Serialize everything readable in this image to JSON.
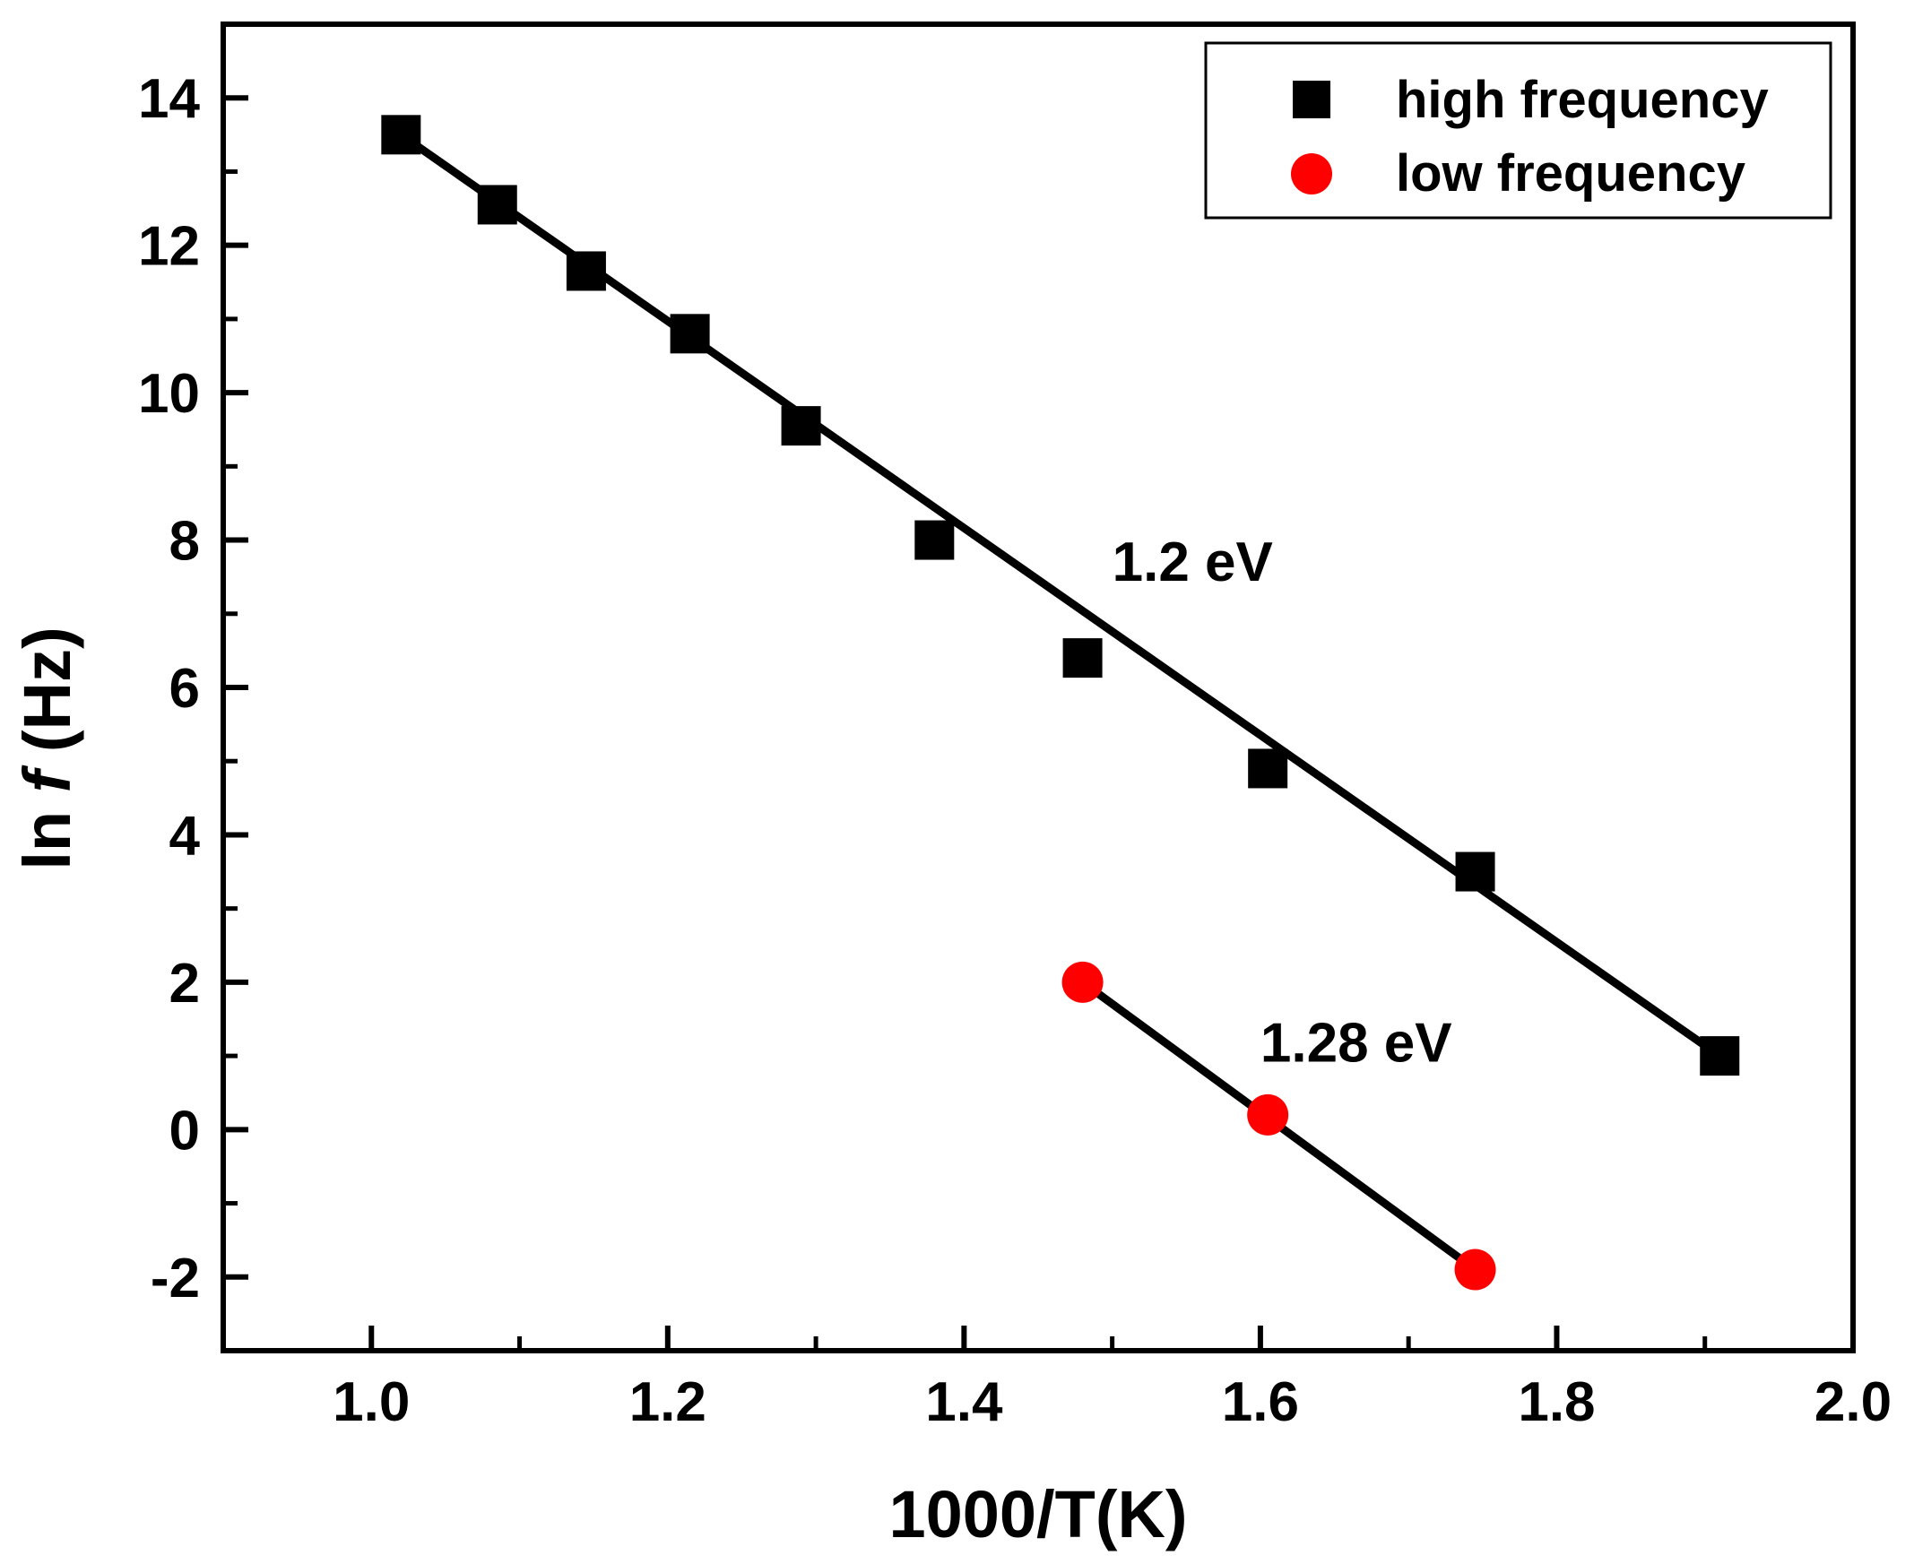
{
  "chart_data": {
    "type": "scatter",
    "title": "",
    "xlabel": "1000/T(K)",
    "ylabel_prefix": "ln ",
    "ylabel_var": "f",
    "ylabel_suffix": " (Hz)",
    "xlim": [
      0.9,
      2.0
    ],
    "ylim": [
      -3,
      15
    ],
    "x_ticks": [
      1.0,
      1.2,
      1.4,
      1.6,
      1.8,
      2.0
    ],
    "x_tick_labels": [
      "1.0",
      "1.2",
      "1.4",
      "1.6",
      "1.8",
      "2.0"
    ],
    "x_minor_ticks": [
      1.1,
      1.3,
      1.5,
      1.7,
      1.9
    ],
    "y_ticks": [
      -2,
      0,
      2,
      4,
      6,
      8,
      10,
      12,
      14
    ],
    "y_tick_labels": [
      "-2",
      "0",
      "2",
      "4",
      "6",
      "8",
      "10",
      "12",
      "14"
    ],
    "y_minor_ticks": [
      -1,
      1,
      3,
      5,
      7,
      9,
      11,
      13
    ],
    "grid": false,
    "legend_position": "top-right",
    "series": [
      {
        "name": "high frequency",
        "marker": "square",
        "color": "#000000",
        "x": [
          1.02,
          1.085,
          1.145,
          1.215,
          1.29,
          1.38,
          1.48,
          1.605,
          1.745,
          1.91
        ],
        "y": [
          13.5,
          12.55,
          11.65,
          10.8,
          9.55,
          8.0,
          6.4,
          4.9,
          3.5,
          1.0
        ],
        "fit": {
          "x": [
            1.02,
            1.91
          ],
          "y": [
            13.5,
            1.0
          ],
          "label": "1.2 eV"
        }
      },
      {
        "name": "low frequency",
        "marker": "circle",
        "color": "#ff0000",
        "x": [
          1.48,
          1.605,
          1.745
        ],
        "y": [
          2.0,
          0.2,
          -1.9
        ],
        "fit": {
          "x": [
            1.48,
            1.745
          ],
          "y": [
            2.0,
            -1.9
          ],
          "label": "1.28 eV"
        }
      }
    ],
    "annotations": [
      {
        "text": "1.2 eV",
        "x": 1.5,
        "y": 7.45
      },
      {
        "text": "1.28 eV",
        "x": 1.6,
        "y": 0.92
      }
    ]
  }
}
